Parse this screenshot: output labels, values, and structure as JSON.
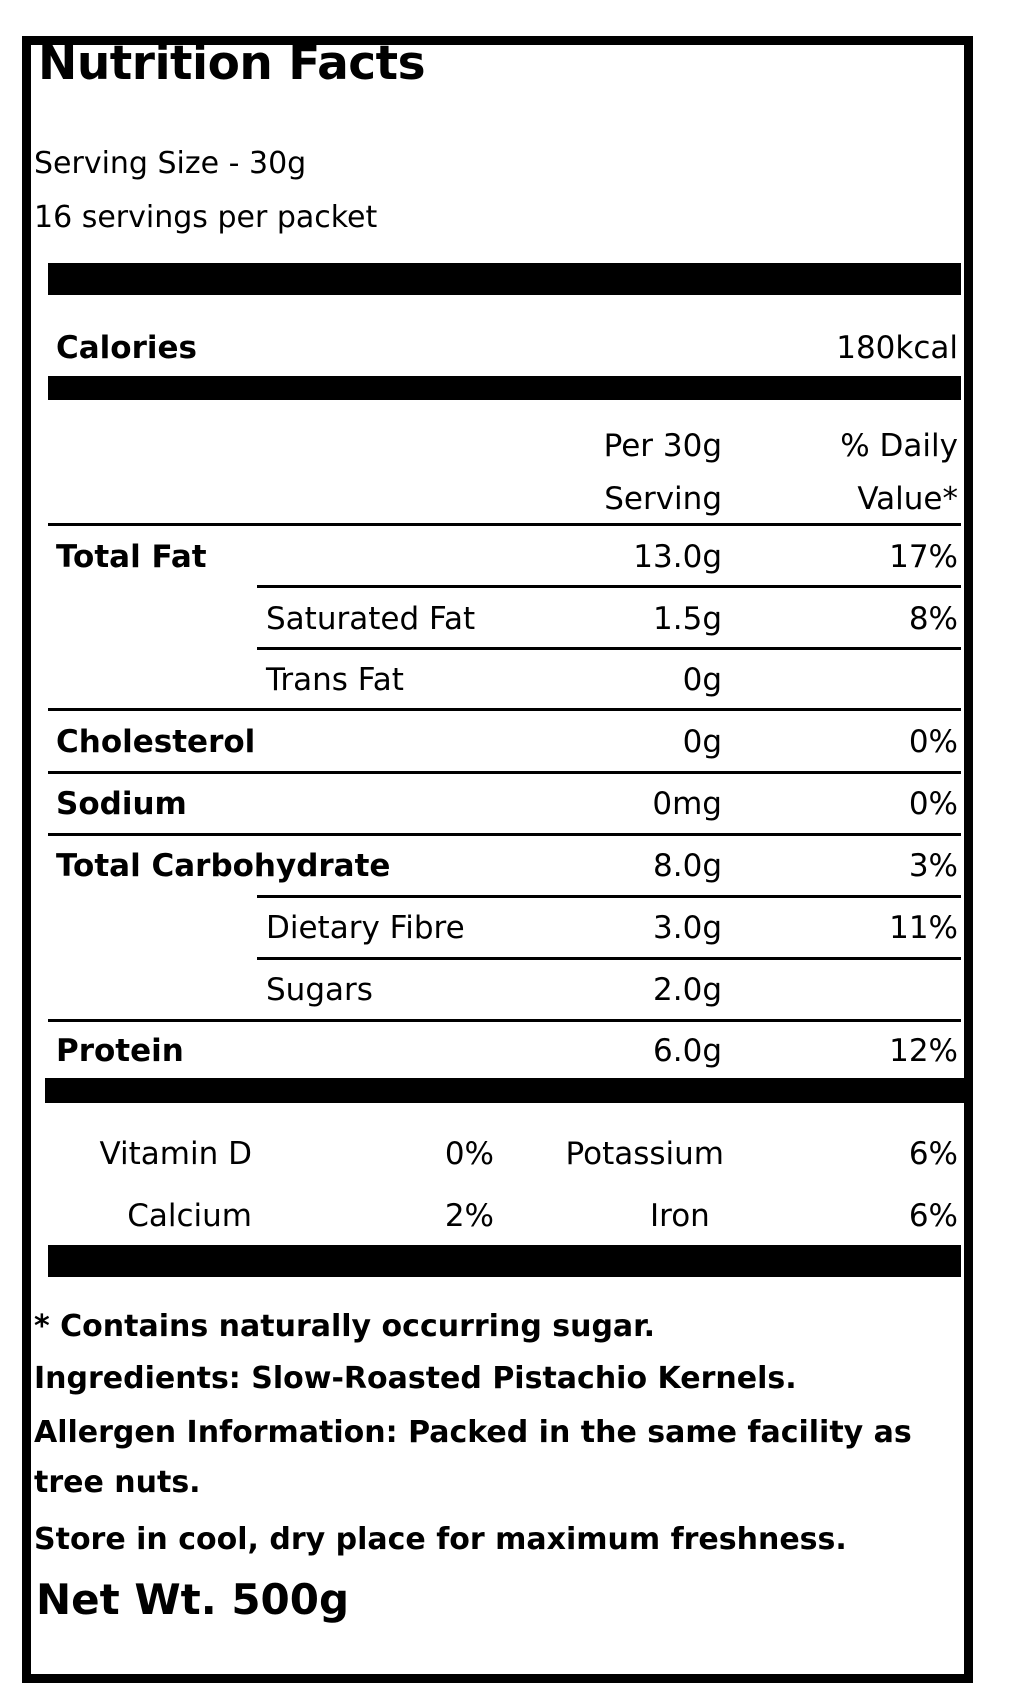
{
  "title": "Nutrition Facts",
  "serving_size": "Serving Size - 30g",
  "servings_per_packet": "16 servings per packet",
  "calories": {
    "label": "Calories",
    "value": "180kcal"
  },
  "column_headers": {
    "per_serving_line1": "Per 30g",
    "per_serving_line2": "Serving",
    "daily_value_line1": "% Daily",
    "daily_value_line2": "Value*"
  },
  "nutrients": [
    {
      "name": "Total Fat",
      "amount": "13.0g",
      "dv": "17%"
    },
    {
      "name": "Saturated Fat",
      "amount": "1.5g",
      "dv": "8%"
    },
    {
      "name": "Trans Fat",
      "amount": "0g",
      "dv": ""
    },
    {
      "name": "Cholesterol",
      "amount": "0g",
      "dv": "0%"
    },
    {
      "name": "Sodium",
      "amount": "0mg",
      "dv": "0%"
    },
    {
      "name": "Total Carbohydrate",
      "amount": "8.0g",
      "dv": "3%"
    },
    {
      "name": "Dietary Fibre",
      "amount": "3.0g",
      "dv": "11%"
    },
    {
      "name": "Sugars",
      "amount": "2.0g",
      "dv": ""
    },
    {
      "name": "Protein",
      "amount": "6.0g",
      "dv": "12%"
    }
  ],
  "vitamins": [
    {
      "name": "Vitamin D",
      "dv": "0%"
    },
    {
      "name": "Potassium",
      "dv": "6%"
    },
    {
      "name": "Calcium",
      "dv": "2%"
    },
    {
      "name": "Iron",
      "dv": "6%"
    }
  ],
  "footer": {
    "sugar_note": "* Contains naturally occurring sugar.",
    "ingredients": "Ingredients: Slow-Roasted Pistachio Kernels.",
    "allergen_line1": "Allergen Information: Packed in the same facility as",
    "allergen_line2": "tree nuts.",
    "storage": "Store in cool, dry place for maximum freshness.",
    "net_weight": "Net Wt. 500g"
  }
}
